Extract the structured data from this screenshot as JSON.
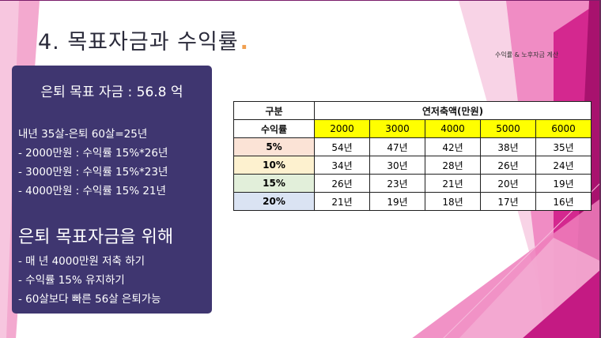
{
  "slide": {
    "title": "4. 목표자금과 수익률",
    "title_dot": ".",
    "subtitle": "수익률 & 노후자금 계산"
  },
  "panel": {
    "goal": "은퇴 목표 자금 : 56.8 억",
    "lines": [
      "내년 35살-은퇴 60살=25년",
      "- 2000만원 : 수익률 15%*26년",
      "- 3000만원 : 수익률 15%*23년",
      "- 4000만원 : 수익률 15% 21년"
    ],
    "heading": "은퇴 목표자금을 위해",
    "bullets": [
      "- 매 년 4000만원 저축 하기",
      "- 수익률 15% 유지하기",
      "- 60살보다 빠른 56살 은퇴가능"
    ]
  },
  "table": {
    "corner_label": "구분",
    "group_label": "연저축액(만원)",
    "rate_label": "수익률",
    "columns": [
      "2000",
      "3000",
      "4000",
      "5000",
      "6000"
    ],
    "rows": [
      {
        "rate": "5%",
        "color": "#fbe3d6",
        "values": [
          "54년",
          "47년",
          "42년",
          "38년",
          "35년"
        ]
      },
      {
        "rate": "10%",
        "color": "#fdf1cf",
        "values": [
          "34년",
          "30년",
          "28년",
          "26년",
          "24년"
        ]
      },
      {
        "rate": "15%",
        "color": "#e2efda",
        "values": [
          "26년",
          "23년",
          "21년",
          "20년",
          "19년"
        ]
      },
      {
        "rate": "20%",
        "color": "#dae3f3",
        "values": [
          "21년",
          "19년",
          "18년",
          "17년",
          "16년"
        ]
      }
    ]
  },
  "colors": {
    "panel_bg": "#3f3670",
    "accent_dot": "#f0a050",
    "header_yellow": "#ffff00",
    "magenta": "#c0167f"
  }
}
